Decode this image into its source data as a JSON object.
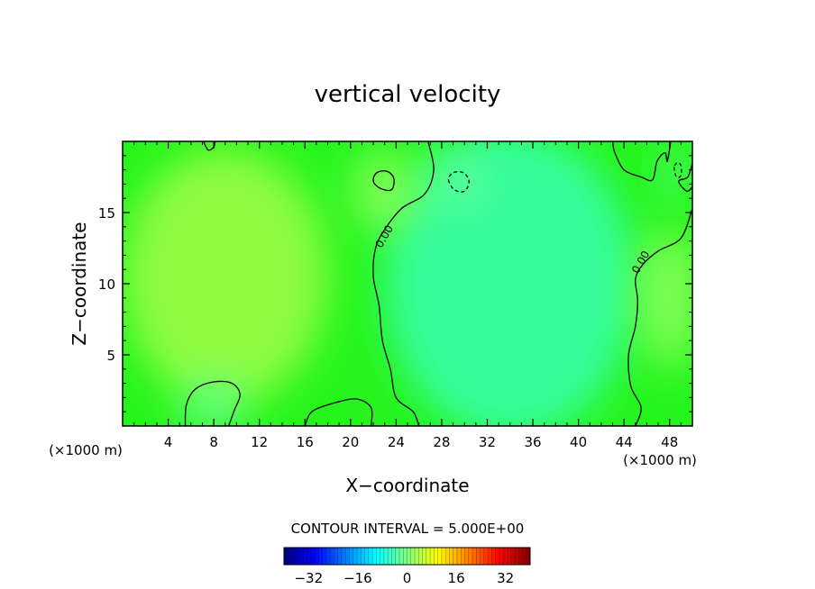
{
  "chart_data": {
    "type": "heatmap",
    "title": "vertical velocity",
    "xlabel": "X−coordinate",
    "ylabel": "Z−coordinate",
    "x_unit_left": "(×1000 m)",
    "x_unit_right": "(×1000 m)",
    "xlim": [
      0,
      50
    ],
    "ylim": [
      0,
      20
    ],
    "xticks": [
      4,
      8,
      12,
      16,
      20,
      24,
      28,
      32,
      36,
      40,
      44,
      48
    ],
    "xtick_labels": [
      "4",
      "8",
      "12",
      "16",
      "20",
      "24",
      "28",
      "32",
      "36",
      "40",
      "44",
      "48"
    ],
    "yticks": [
      5,
      10,
      15
    ],
    "ytick_labels": [
      "5",
      "10",
      "15"
    ],
    "contour_interval_text": "CONTOUR INTERVAL = 5.000E+00",
    "contour_labels": [
      {
        "text": "0.00",
        "x": 23.0,
        "y": 13.3
      },
      {
        "text": "0.00",
        "x": 45.5,
        "y": 11.5
      }
    ],
    "colorbar": {
      "min": -40,
      "max": 40,
      "ticks": [
        -32,
        -16,
        0,
        16,
        32
      ],
      "tick_labels": [
        "−32",
        "−16",
        "0",
        "16",
        "32"
      ]
    },
    "field_blobs": [
      {
        "x": 34,
        "y": 10,
        "rx": 11,
        "ry": 11,
        "v": -5.5
      },
      {
        "x": 29.5,
        "y": 17.2,
        "rx": 2.5,
        "ry": 2,
        "v": -2
      },
      {
        "x": 9,
        "y": 10.5,
        "rx": 9,
        "ry": 9,
        "v": 4
      },
      {
        "x": 23,
        "y": 16.5,
        "rx": 3,
        "ry": 3,
        "v": 2
      },
      {
        "x": 48.5,
        "y": 17.8,
        "rx": 1.5,
        "ry": 1.5,
        "v": -2
      },
      {
        "x": 48,
        "y": 9,
        "rx": 3,
        "ry": 5,
        "v": 2
      },
      {
        "x": 8,
        "y": 1.5,
        "rx": 3,
        "ry": 2,
        "v": -2
      }
    ],
    "contours": [
      {
        "style": "solid",
        "closed": false,
        "points": [
          [
            26,
            0
          ],
          [
            25.5,
            1
          ],
          [
            24,
            2
          ],
          [
            23.5,
            4
          ],
          [
            22.8,
            6
          ],
          [
            22.5,
            8.5
          ],
          [
            22,
            10.5
          ],
          [
            22.2,
            12.5
          ],
          [
            23,
            13.8
          ],
          [
            24.5,
            15.3
          ],
          [
            26.5,
            16.3
          ],
          [
            27.3,
            18
          ],
          [
            26.8,
            20
          ]
        ]
      },
      {
        "style": "solid",
        "closed": false,
        "points": [
          [
            45,
            0
          ],
          [
            45.5,
            1.3
          ],
          [
            44.6,
            2.8
          ],
          [
            44.4,
            5
          ],
          [
            45,
            7
          ],
          [
            45.2,
            8.8
          ],
          [
            45,
            10.3
          ],
          [
            45.6,
            11.3
          ],
          [
            47,
            12.3
          ],
          [
            49,
            13.2
          ],
          [
            50,
            15.3
          ]
        ]
      },
      {
        "style": "solid",
        "closed": true,
        "points": [
          [
            22,
            17.2
          ],
          [
            22.6,
            16.7
          ],
          [
            23.6,
            16.6
          ],
          [
            23.8,
            17.4
          ],
          [
            23.2,
            17.9
          ],
          [
            22.3,
            17.8
          ]
        ]
      },
      {
        "style": "solid",
        "closed": false,
        "points": [
          [
            5.5,
            0
          ],
          [
            5.6,
            1.5
          ],
          [
            6.4,
            2.6
          ],
          [
            8,
            3.1
          ],
          [
            9.6,
            3
          ],
          [
            10.3,
            2.2
          ],
          [
            9.8,
            1.1
          ],
          [
            9.3,
            0
          ]
        ]
      },
      {
        "style": "solid",
        "closed": false,
        "points": [
          [
            16,
            0
          ],
          [
            16.6,
            1
          ],
          [
            18.5,
            1.6
          ],
          [
            20.5,
            1.9
          ],
          [
            21.8,
            1.3
          ],
          [
            21.8,
            0
          ]
        ]
      },
      {
        "style": "solid",
        "closed": false,
        "points": [
          [
            7.1,
            20
          ],
          [
            7.5,
            19.4
          ],
          [
            8,
            19.6
          ],
          [
            8.1,
            20
          ]
        ]
      },
      {
        "style": "solid",
        "closed": false,
        "points": [
          [
            43,
            20
          ],
          [
            43.2,
            19.2
          ],
          [
            44,
            18
          ],
          [
            45.5,
            17.5
          ],
          [
            46.5,
            17.3
          ],
          [
            46.9,
            18.6
          ],
          [
            47.6,
            19.2
          ],
          [
            47.8,
            18.6
          ],
          [
            48.1,
            20
          ]
        ]
      },
      {
        "style": "solid",
        "closed": false,
        "points": [
          [
            50,
            18.5
          ],
          [
            49.6,
            17.5
          ],
          [
            48.8,
            17.2
          ],
          [
            49.5,
            16.5
          ],
          [
            50,
            16.8
          ]
        ]
      },
      {
        "style": "dashed",
        "closed": true,
        "points": [
          [
            28.6,
            17.3
          ],
          [
            29.1,
            16.6
          ],
          [
            30,
            16.5
          ],
          [
            30.4,
            17.2
          ],
          [
            29.9,
            17.8
          ],
          [
            29,
            17.8
          ]
        ]
      },
      {
        "style": "dashed",
        "closed": true,
        "points": [
          [
            48.4,
            18.2
          ],
          [
            48.6,
            17.5
          ],
          [
            49,
            17.6
          ],
          [
            49,
            18.3
          ],
          [
            48.7,
            18.5
          ]
        ]
      }
    ]
  }
}
